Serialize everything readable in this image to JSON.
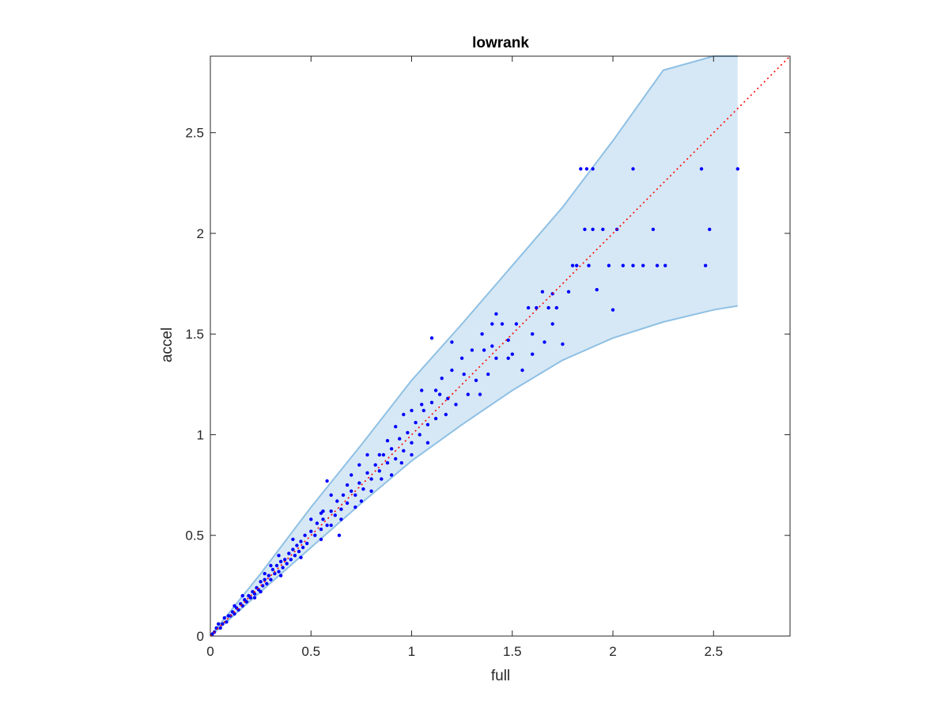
{
  "chart_data": {
    "type": "scatter",
    "title": "lowrank",
    "xlabel": "full",
    "ylabel": "accel",
    "xlim": [
      0,
      2.88
    ],
    "ylim": [
      0,
      2.88
    ],
    "xticks": [
      {
        "value": 0,
        "label": "0"
      },
      {
        "value": 0.5,
        "label": "0.5"
      },
      {
        "value": 1,
        "label": "1"
      },
      {
        "value": 1.5,
        "label": "1.5"
      },
      {
        "value": 2,
        "label": "2"
      },
      {
        "value": 2.5,
        "label": "2.5"
      }
    ],
    "yticks": [
      {
        "value": 0,
        "label": "0"
      },
      {
        "value": 0.5,
        "label": "0.5"
      },
      {
        "value": 1,
        "label": "1"
      },
      {
        "value": 1.5,
        "label": "1.5"
      },
      {
        "value": 2,
        "label": "2"
      },
      {
        "value": 2.5,
        "label": "2.5"
      }
    ],
    "grid": false,
    "colors": {
      "points": "#0000ff",
      "band_fill": "#d6e8f5",
      "band_edge": "#8fc0e4",
      "reference_line": "#ff0000",
      "axes": "#262626"
    },
    "reference_line": {
      "style": "dotted",
      "x": [
        0,
        2.88
      ],
      "y": [
        0,
        2.88
      ]
    },
    "band": {
      "x": [
        0,
        0.25,
        0.5,
        0.75,
        1.0,
        1.25,
        1.5,
        1.75,
        2.0,
        2.25,
        2.5,
        2.62
      ],
      "upper": [
        0,
        0.31,
        0.64,
        0.95,
        1.27,
        1.55,
        1.84,
        2.13,
        2.46,
        2.81,
        2.88,
        2.88
      ],
      "lower": [
        0,
        0.22,
        0.44,
        0.66,
        0.87,
        1.05,
        1.22,
        1.37,
        1.48,
        1.56,
        1.62,
        1.64
      ]
    },
    "series": [
      {
        "points": [
          [
            0.02,
            0.02
          ],
          [
            0.03,
            0.04
          ],
          [
            0.05,
            0.04
          ],
          [
            0.06,
            0.06
          ],
          [
            0.08,
            0.07
          ],
          [
            0.09,
            0.1
          ],
          [
            0.1,
            0.1
          ],
          [
            0.11,
            0.12
          ],
          [
            0.12,
            0.11
          ],
          [
            0.13,
            0.14
          ],
          [
            0.14,
            0.13
          ],
          [
            0.15,
            0.16
          ],
          [
            0.16,
            0.15
          ],
          [
            0.17,
            0.18
          ],
          [
            0.18,
            0.17
          ],
          [
            0.19,
            0.2
          ],
          [
            0.2,
            0.19
          ],
          [
            0.21,
            0.22
          ],
          [
            0.22,
            0.21
          ],
          [
            0.23,
            0.24
          ],
          [
            0.24,
            0.23
          ],
          [
            0.25,
            0.27
          ],
          [
            0.26,
            0.25
          ],
          [
            0.27,
            0.28
          ],
          [
            0.28,
            0.26
          ],
          [
            0.29,
            0.3
          ],
          [
            0.3,
            0.28
          ],
          [
            0.31,
            0.33
          ],
          [
            0.32,
            0.31
          ],
          [
            0.33,
            0.35
          ],
          [
            0.34,
            0.32
          ],
          [
            0.35,
            0.37
          ],
          [
            0.36,
            0.34
          ],
          [
            0.37,
            0.38
          ],
          [
            0.38,
            0.36
          ],
          [
            0.39,
            0.41
          ],
          [
            0.4,
            0.38
          ],
          [
            0.41,
            0.43
          ],
          [
            0.42,
            0.4
          ],
          [
            0.43,
            0.45
          ],
          [
            0.44,
            0.42
          ],
          [
            0.45,
            0.47
          ],
          [
            0.46,
            0.44
          ],
          [
            0.47,
            0.5
          ],
          [
            0.48,
            0.46
          ],
          [
            0.5,
            0.52
          ],
          [
            0.52,
            0.5
          ],
          [
            0.53,
            0.56
          ],
          [
            0.55,
            0.53
          ],
          [
            0.56,
            0.58
          ],
          [
            0.58,
            0.55
          ],
          [
            0.6,
            0.62
          ],
          [
            0.62,
            0.6
          ],
          [
            0.63,
            0.67
          ],
          [
            0.65,
            0.63
          ],
          [
            0.66,
            0.7
          ],
          [
            0.68,
            0.66
          ],
          [
            0.7,
            0.72
          ],
          [
            0.72,
            0.7
          ],
          [
            0.74,
            0.76
          ],
          [
            0.76,
            0.73
          ],
          [
            0.78,
            0.81
          ],
          [
            0.8,
            0.78
          ],
          [
            0.82,
            0.85
          ],
          [
            0.84,
            0.82
          ],
          [
            0.86,
            0.9
          ],
          [
            0.88,
            0.86
          ],
          [
            0.9,
            0.93
          ],
          [
            0.92,
            0.88
          ],
          [
            0.94,
            0.98
          ],
          [
            0.96,
            0.92
          ],
          [
            0.98,
            1.01
          ],
          [
            1.0,
            0.96
          ],
          [
            1.02,
            1.06
          ],
          [
            1.04,
            1.0
          ],
          [
            1.06,
            1.12
          ],
          [
            1.08,
            1.05
          ],
          [
            1.1,
            1.16
          ],
          [
            1.12,
            1.08
          ],
          [
            1.14,
            1.2
          ],
          [
            0.16,
            0.2
          ],
          [
            0.22,
            0.19
          ],
          [
            0.3,
            0.35
          ],
          [
            0.35,
            0.3
          ],
          [
            0.41,
            0.48
          ],
          [
            0.45,
            0.39
          ],
          [
            0.56,
            0.62
          ],
          [
            0.6,
            0.55
          ],
          [
            0.55,
            0.61
          ],
          [
            0.6,
            0.7
          ],
          [
            0.65,
            0.58
          ],
          [
            0.7,
            0.8
          ],
          [
            0.75,
            0.67
          ],
          [
            0.74,
            0.85
          ],
          [
            0.8,
            0.72
          ],
          [
            0.85,
            0.78
          ],
          [
            0.88,
            0.97
          ],
          [
            0.9,
            0.8
          ],
          [
            0.96,
            1.1
          ],
          [
            1.0,
            0.9
          ],
          [
            1.05,
            1.22
          ],
          [
            1.08,
            0.96
          ],
          [
            1.15,
            1.28
          ],
          [
            1.17,
            1.1
          ],
          [
            1.2,
            1.32
          ],
          [
            1.22,
            1.15
          ],
          [
            1.25,
            1.38
          ],
          [
            1.28,
            1.2
          ],
          [
            1.3,
            1.42
          ],
          [
            1.32,
            1.27
          ],
          [
            1.35,
            1.5
          ],
          [
            1.38,
            1.3
          ],
          [
            1.4,
            1.55
          ],
          [
            1.42,
            1.38
          ],
          [
            1.45,
            1.55
          ],
          [
            1.48,
            1.47
          ],
          [
            1.52,
            1.55
          ],
          [
            1.55,
            1.32
          ],
          [
            1.58,
            1.63
          ],
          [
            1.6,
            1.5
          ],
          [
            1.62,
            1.63
          ],
          [
            1.65,
            1.71
          ],
          [
            1.68,
            1.63
          ],
          [
            1.7,
            1.55
          ],
          [
            1.72,
            1.63
          ],
          [
            1.75,
            1.45
          ],
          [
            1.78,
            1.71
          ],
          [
            1.8,
            1.84
          ],
          [
            1.82,
            1.84
          ],
          [
            1.86,
            2.02
          ],
          [
            1.88,
            1.84
          ],
          [
            1.9,
            2.02
          ],
          [
            1.92,
            1.72
          ],
          [
            1.95,
            2.02
          ],
          [
            1.98,
            1.84
          ],
          [
            2.0,
            1.62
          ],
          [
            2.02,
            2.02
          ],
          [
            2.05,
            1.84
          ],
          [
            2.1,
            1.84
          ],
          [
            2.15,
            1.84
          ],
          [
            2.2,
            2.02
          ],
          [
            2.22,
            1.84
          ],
          [
            2.26,
            1.84
          ],
          [
            2.46,
            1.84
          ],
          [
            2.48,
            2.02
          ],
          [
            1.84,
            2.32
          ],
          [
            1.87,
            2.32
          ],
          [
            1.9,
            2.32
          ],
          [
            2.1,
            2.32
          ],
          [
            2.44,
            2.32
          ],
          [
            2.62,
            2.32
          ],
          [
            1.1,
            1.48
          ],
          [
            1.2,
            1.46
          ],
          [
            0.58,
            0.77
          ],
          [
            0.64,
            0.5
          ],
          [
            0.78,
            0.9
          ],
          [
            0.95,
            0.86
          ],
          [
            0.92,
            1.04
          ],
          [
            1.0,
            1.12
          ],
          [
            1.05,
            1.15
          ],
          [
            1.12,
            1.22
          ],
          [
            1.18,
            1.18
          ],
          [
            1.26,
            1.3
          ],
          [
            1.34,
            1.2
          ],
          [
            1.36,
            1.42
          ],
          [
            1.42,
            1.6
          ],
          [
            1.5,
            1.4
          ],
          [
            1.66,
            1.46
          ],
          [
            1.7,
            1.7
          ],
          [
            1.6,
            1.4
          ],
          [
            1.48,
            1.38
          ],
          [
            1.4,
            1.44
          ],
          [
            0.68,
            0.75
          ],
          [
            0.72,
            0.64
          ],
          [
            0.84,
            0.9
          ],
          [
            0.5,
            0.58
          ],
          [
            0.55,
            0.48
          ],
          [
            0.34,
            0.4
          ],
          [
            0.27,
            0.31
          ],
          [
            0.25,
            0.22
          ],
          [
            0.12,
            0.15
          ],
          [
            0.07,
            0.09
          ],
          [
            0.04,
            0.06
          ],
          [
            0.01,
            0.01
          ]
        ]
      }
    ]
  }
}
